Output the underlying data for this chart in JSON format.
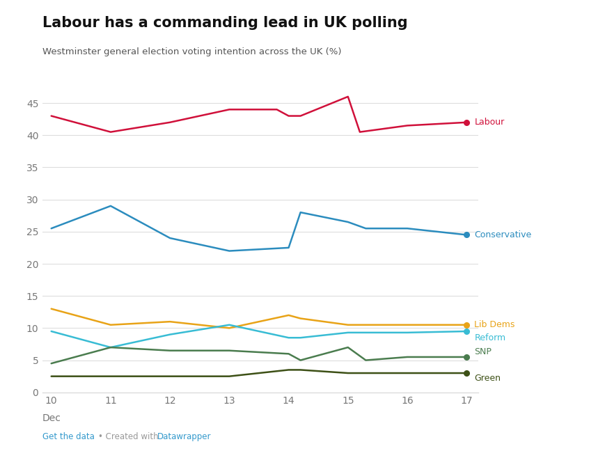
{
  "title": "Labour has a commanding lead in UK polling",
  "subtitle": "Westminster general election voting intention across the UK (%)",
  "x_ticks": [
    10,
    11,
    12,
    13,
    14,
    15,
    16,
    17
  ],
  "x_label_bottom": "Dec",
  "ylim": [
    0,
    47
  ],
  "y_ticks": [
    0,
    5,
    10,
    15,
    20,
    25,
    30,
    35,
    40,
    45
  ],
  "series": {
    "Labour": {
      "color": "#d0103a",
      "x": [
        10,
        11,
        12,
        13,
        13.8,
        14,
        14.2,
        15,
        15.2,
        16,
        17
      ],
      "y": [
        43,
        40.5,
        42,
        44,
        44,
        43,
        43,
        46,
        40.5,
        41.5,
        42
      ],
      "marker_x": 17,
      "marker_y": 42
    },
    "Conservative": {
      "color": "#2b8cbe",
      "x": [
        10,
        11,
        12,
        13,
        14,
        14.2,
        15,
        15.3,
        16,
        17
      ],
      "y": [
        25.5,
        29,
        24,
        22,
        22.5,
        28,
        26.5,
        25.5,
        25.5,
        24.5
      ],
      "marker_x": 17,
      "marker_y": 24.5
    },
    "Lib Dems": {
      "color": "#e8a317",
      "x": [
        10,
        11,
        12,
        13,
        14,
        14.2,
        15,
        15.5,
        16,
        17
      ],
      "y": [
        13,
        10.5,
        11,
        10,
        12,
        11.5,
        10.5,
        10.5,
        10.5,
        10.5
      ],
      "marker_x": 17,
      "marker_y": 10.5
    },
    "Reform": {
      "color": "#38bcd4",
      "x": [
        10,
        11,
        12,
        13,
        14,
        14.2,
        15,
        15.5,
        16,
        17
      ],
      "y": [
        9.5,
        7,
        9,
        10.5,
        8.5,
        8.5,
        9.3,
        9.3,
        9.3,
        9.5
      ],
      "marker_x": 17,
      "marker_y": 9.5
    },
    "SNP": {
      "color": "#4a7c4e",
      "x": [
        10,
        11,
        12,
        13,
        14,
        14.2,
        15,
        15.3,
        16,
        17
      ],
      "y": [
        4.5,
        7,
        6.5,
        6.5,
        6,
        5,
        7,
        5,
        5.5,
        5.5
      ],
      "marker_x": 17,
      "marker_y": 5.5
    },
    "Green": {
      "color": "#3d5016",
      "x": [
        10,
        11,
        12,
        13,
        14,
        14.2,
        15,
        15.5,
        16,
        17
      ],
      "y": [
        2.5,
        2.5,
        2.5,
        2.5,
        3.5,
        3.5,
        3,
        3,
        3,
        3
      ],
      "marker_x": 17,
      "marker_y": 3
    }
  },
  "label_offsets": {
    "Labour": 0,
    "Conservative": 0,
    "Lib Dems": 0,
    "Reform": -1.0,
    "SNP": 0.8,
    "Green": -0.8
  },
  "background_color": "#ffffff",
  "grid_color": "#dddddd",
  "tick_color": "#777777",
  "footer_link_color": "#3399cc",
  "footer_sep_color": "#999999"
}
